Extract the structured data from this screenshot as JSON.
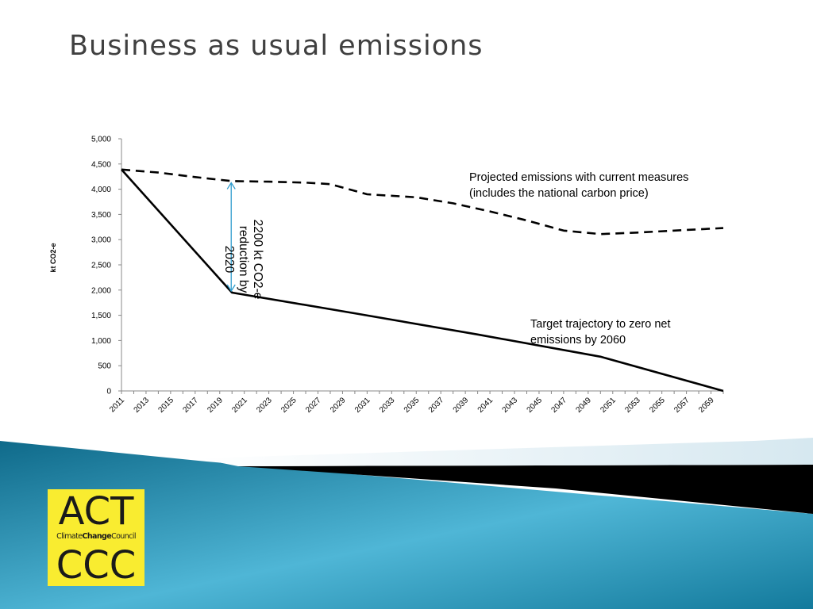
{
  "slide": {
    "title": "Business as usual emissions",
    "logo": {
      "line1": "ACT",
      "line2_a": "Climate",
      "line2_b": "Change",
      "line2_c": "Council",
      "line3": "CCC"
    }
  },
  "colors": {
    "title": "#404040",
    "series": "#000000",
    "arrow": "#2e9ccd",
    "logo_bg": "#f9ec30",
    "footer_teal": "#2a8fb0"
  },
  "chart_data": {
    "type": "line",
    "title": "",
    "xlabel": "",
    "ylabel": "kt CO2-e",
    "ylim": [
      0,
      5000
    ],
    "yticks": [
      "0",
      "500",
      "1,000",
      "1,500",
      "2,000",
      "2,500",
      "3,000",
      "3,500",
      "4,000",
      "4,500",
      "5,000"
    ],
    "xticks": [
      "2011",
      "2013",
      "2015",
      "2017",
      "2019",
      "2021",
      "2023",
      "2025",
      "2027",
      "2029",
      "2031",
      "2033",
      "2035",
      "2037",
      "2039",
      "2041",
      "2043",
      "2045",
      "2047",
      "2049",
      "2051",
      "2053",
      "2055",
      "2057",
      "2059"
    ],
    "grid": false,
    "series": [
      {
        "style": "dashed",
        "x": [
          2011,
          2014,
          2017,
          2020,
          2023,
          2026,
          2028,
          2031,
          2035,
          2038,
          2041,
          2044,
          2047,
          2050,
          2053,
          2056,
          2060
        ],
        "values": [
          4390,
          4330,
          4240,
          4160,
          4150,
          4130,
          4100,
          3900,
          3840,
          3720,
          3560,
          3380,
          3180,
          3110,
          3140,
          3180,
          3230
        ]
      },
      {
        "style": "solid",
        "x": [
          2011,
          2020,
          2030,
          2040,
          2050,
          2060
        ],
        "values": [
          4390,
          1950,
          1540,
          1120,
          680,
          0
        ]
      }
    ],
    "annotations": [
      {
        "id": "projected",
        "text_line1": "Projected emissions with current measures",
        "text_line2": "(includes the national carbon price)"
      },
      {
        "id": "target",
        "text_line1": "Target trajectory to zero net",
        "text_line2": "emissions by 2060"
      },
      {
        "id": "reduction",
        "text_line1": "2200 kt CO2-e",
        "text_line2": "reduction by",
        "text_line3": "2020",
        "arrow_x": 2020,
        "arrow_from": 1950,
        "arrow_to": 4160
      }
    ]
  }
}
